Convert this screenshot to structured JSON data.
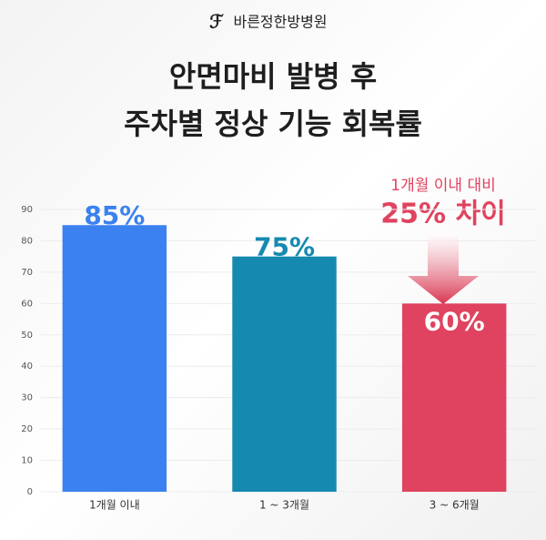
{
  "brand": "바른정한방병원",
  "chart_data": {
    "type": "bar",
    "title": [
      "안면마비 발병 후",
      "주차별 정상 기능 회복률"
    ],
    "categories": [
      "1개월 이내",
      "1 ~ 3개월",
      "3 ~ 6개월"
    ],
    "values": [
      85,
      75,
      60
    ],
    "value_labels": [
      "85%",
      "75%",
      "60%"
    ],
    "colors": [
      "#3b82f0",
      "#1689b0",
      "#e0435f"
    ],
    "value_label_colors": [
      "#3b82f0",
      "#1689b0",
      "#ffffff"
    ],
    "ylim": [
      0,
      90
    ],
    "yticks": [
      0,
      10,
      20,
      30,
      40,
      50,
      60,
      70,
      80,
      90
    ],
    "grid": true,
    "annotation": [
      "1개월 이내 대비",
      "25% 차이"
    ]
  }
}
